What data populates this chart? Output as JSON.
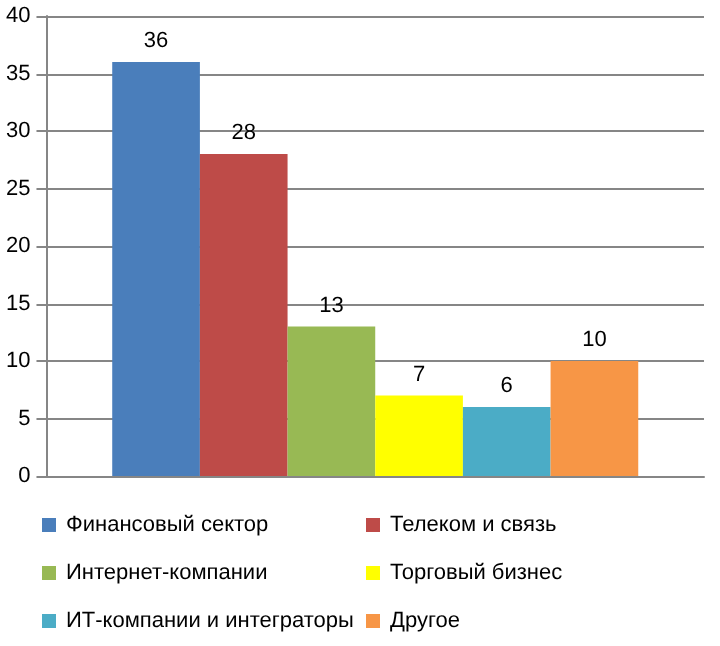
{
  "chart_data": {
    "type": "bar",
    "categories": [
      null
    ],
    "series": [
      {
        "name": "Финансовый сектор",
        "color": "#4a7ebb",
        "values": [
          36
        ]
      },
      {
        "name": "Телеком и связь",
        "color": "#be4b48",
        "values": [
          28
        ]
      },
      {
        "name": "Интернет-компании",
        "color": "#98b954",
        "values": [
          13
        ]
      },
      {
        "name": "Торговый бизнес",
        "color": "#ffff00",
        "values": [
          7
        ]
      },
      {
        "name": "ИТ-компании и интеграторы",
        "color": "#4bacc6",
        "values": [
          6
        ]
      },
      {
        "name": "Другое",
        "color": "#f79646",
        "values": [
          10
        ]
      }
    ],
    "ylim": [
      0,
      40
    ],
    "yticks": [
      0,
      5,
      10,
      15,
      20,
      25,
      30,
      35,
      40
    ],
    "grid": "y",
    "legend": "bottom",
    "data_labels": true
  }
}
